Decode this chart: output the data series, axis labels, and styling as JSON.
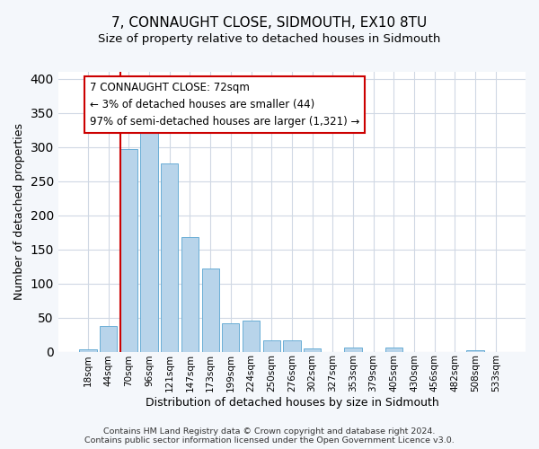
{
  "title": "7, CONNAUGHT CLOSE, SIDMOUTH, EX10 8TU",
  "subtitle": "Size of property relative to detached houses in Sidmouth",
  "xlabel": "Distribution of detached houses by size in Sidmouth",
  "ylabel": "Number of detached properties",
  "bin_labels": [
    "18sqm",
    "44sqm",
    "70sqm",
    "96sqm",
    "121sqm",
    "147sqm",
    "173sqm",
    "199sqm",
    "224sqm",
    "250sqm",
    "276sqm",
    "302sqm",
    "327sqm",
    "353sqm",
    "379sqm",
    "405sqm",
    "430sqm",
    "456sqm",
    "482sqm",
    "508sqm",
    "533sqm"
  ],
  "bar_heights": [
    4,
    37,
    297,
    329,
    276,
    168,
    122,
    42,
    46,
    16,
    17,
    5,
    0,
    6,
    0,
    6,
    0,
    0,
    0,
    2,
    0
  ],
  "bar_color": "#b8d4ea",
  "bar_edge_color": "#6aaed6",
  "property_line_bin_index": 2,
  "property_line_color": "#cc0000",
  "annotation_text": "7 CONNAUGHT CLOSE: 72sqm\n← 3% of detached houses are smaller (44)\n97% of semi-detached houses are larger (1,321) →",
  "annotation_box_color": "#ffffff",
  "annotation_box_edge": "#cc0000",
  "ylim": [
    0,
    410
  ],
  "yticks": [
    0,
    50,
    100,
    150,
    200,
    250,
    300,
    350,
    400
  ],
  "footer_text": "Contains HM Land Registry data © Crown copyright and database right 2024.\nContains public sector information licensed under the Open Government Licence v3.0.",
  "background_color": "#f4f7fb",
  "plot_bg_color": "#ffffff",
  "grid_color": "#d0d8e4",
  "title_fontsize": 11,
  "subtitle_fontsize": 9.5
}
